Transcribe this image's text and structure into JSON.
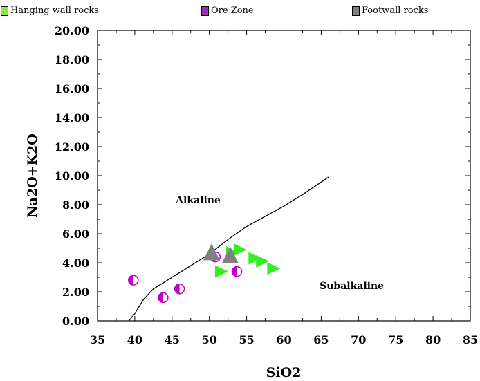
{
  "chart_data": {
    "type": "scatter",
    "xlabel": "SiO2",
    "ylabel": "Na2O+K2O",
    "xlim": [
      35,
      85
    ],
    "ylim": [
      0,
      20
    ],
    "x_ticks": [
      "35",
      "40",
      "45",
      "50",
      "55",
      "60",
      "65",
      "70",
      "75",
      "80",
      "85"
    ],
    "y_ticks": [
      "0.00",
      "2.00",
      "4.00",
      "6.00",
      "8.00",
      "10.00",
      "12.00",
      "14.00",
      "16.00",
      "18.00",
      "20.00"
    ],
    "grid": false,
    "legend_position": "top",
    "legend": [
      {
        "label": "Hanging wall rocks",
        "color": "#8fe83a"
      },
      {
        "label": "Ore Zone",
        "color": "#9b2fb8"
      },
      {
        "label": "Footwall rocks",
        "color": "#808080"
      }
    ],
    "boundary_line": [
      [
        39.2,
        0.0
      ],
      [
        40.0,
        0.5
      ],
      [
        41.2,
        1.5
      ],
      [
        42.5,
        2.2
      ],
      [
        45.0,
        3.0
      ],
      [
        47.5,
        3.8
      ],
      [
        50.0,
        4.6
      ],
      [
        52.5,
        5.6
      ],
      [
        55.0,
        6.5
      ],
      [
        57.5,
        7.2
      ],
      [
        60.0,
        7.9
      ],
      [
        62.5,
        8.7
      ],
      [
        66.0,
        9.9
      ]
    ],
    "region_labels": [
      {
        "text": "Alkaline",
        "x": 48.5,
        "y": 8.1
      },
      {
        "text": "Subalkaline",
        "x": 69.1,
        "y": 2.2
      }
    ],
    "series": [
      {
        "name": "Hanging wall rocks",
        "marker": "triangle-right",
        "color": "#33ee22",
        "points": [
          [
            51.5,
            3.4
          ],
          [
            53.0,
            4.7
          ],
          [
            54.0,
            4.9
          ],
          [
            56.0,
            4.3
          ],
          [
            57.0,
            4.1
          ],
          [
            58.5,
            3.6
          ]
        ]
      },
      {
        "name": "Ore Zone",
        "marker": "half-circle",
        "color": "#c000c8",
        "points": [
          [
            39.8,
            2.8
          ],
          [
            43.8,
            1.6
          ],
          [
            46.0,
            2.2
          ],
          [
            50.8,
            4.4
          ],
          [
            53.7,
            3.4
          ]
        ]
      },
      {
        "name": "Footwall rocks",
        "marker": "triangle-up",
        "color": "#808080",
        "points": [
          [
            50.3,
            4.6
          ],
          [
            52.8,
            4.4
          ]
        ]
      }
    ]
  }
}
